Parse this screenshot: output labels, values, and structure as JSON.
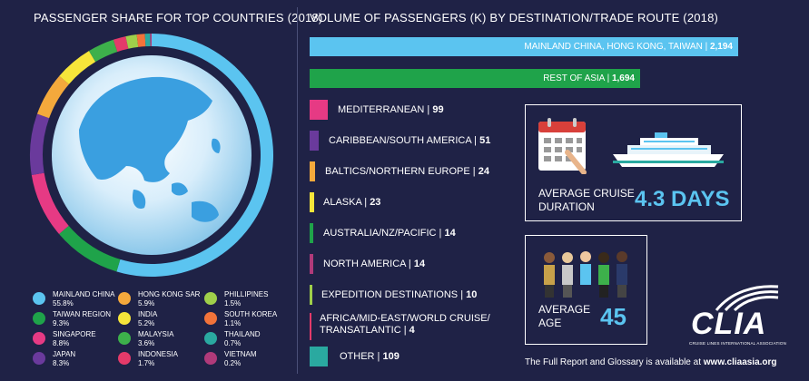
{
  "left_heading": "PASSENGER SHARE FOR TOP COUNTRIES (2018)",
  "right_heading": "VOLUME OF PASSENGERS (K) BY DESTINATION/TRADE ROUTE (2018)",
  "chart_data": [
    {
      "type": "pie",
      "title": "PASSENGER SHARE FOR TOP COUNTRIES (2018)",
      "slices": [
        {
          "name": "MAINLAND CHINA",
          "value": 55.8,
          "value_label": "55.8%",
          "color": "#5bc4f0"
        },
        {
          "name": "TAIWAN REGION",
          "value": 9.3,
          "value_label": "9.3%",
          "color": "#1fa34a"
        },
        {
          "name": "SINGAPORE",
          "value": 8.8,
          "value_label": "8.8%",
          "color": "#e63a84"
        },
        {
          "name": "JAPAN",
          "value": 8.3,
          "value_label": "8.3%",
          "color": "#6a3a9c"
        },
        {
          "name": "HONG KONG SAR",
          "value": 5.9,
          "value_label": "5.9%",
          "color": "#f4a93c"
        },
        {
          "name": "INDIA",
          "value": 5.2,
          "value_label": "5.2%",
          "color": "#f6e53a"
        },
        {
          "name": "MALAYSIA",
          "value": 3.6,
          "value_label": "3.6%",
          "color": "#3db04b"
        },
        {
          "name": "INDONESIA",
          "value": 1.7,
          "value_label": "1.7%",
          "color": "#e43a6a"
        },
        {
          "name": "PHILLIPINES",
          "value": 1.5,
          "value_label": "1.5%",
          "color": "#9fcf4a"
        },
        {
          "name": "SOUTH KOREA",
          "value": 1.1,
          "value_label": "1.1%",
          "color": "#f2733a"
        },
        {
          "name": "THAILAND",
          "value": 0.7,
          "value_label": "0.7%",
          "color": "#2aa9a0"
        },
        {
          "name": "VIETNAM",
          "value": 0.2,
          "value_label": "0.2%",
          "color": "#b03a7a"
        }
      ]
    },
    {
      "type": "bar",
      "title": "VOLUME OF PASSENGERS (K) BY DESTINATION/TRADE ROUTE (2018)",
      "categories": [
        "MAINLAND CHINA, HONG KONG, TAIWAN",
        "REST OF ASIA",
        "MEDITERRANEAN",
        "CARIBBEAN/SOUTH AMERICA",
        "BALTICS/NORTHERN EUROPE",
        "ALASKA",
        "AUSTRALIA/NZ/PACIFIC",
        "NORTH AMERICA",
        "EXPEDITION DESTINATIONS",
        "AFRICA/MID-EAST/WORLD CRUISE/ TRANSATLANTIC",
        "OTHER"
      ],
      "values": [
        2194,
        1694,
        99,
        51,
        24,
        23,
        14,
        14,
        10,
        4,
        109
      ],
      "value_labels": [
        "2,194",
        "1,694",
        "99",
        "51",
        "24",
        "23",
        "14",
        "14",
        "10",
        "4",
        "109"
      ],
      "colors": [
        "#5bc4f0",
        "#1fa34a",
        "#e63a84",
        "#6a3a9c",
        "#f4a93c",
        "#f6e53a",
        "#1fa34a",
        "#b03a7a",
        "#9fcf4a",
        "#e43a6a",
        "#2aa9a0"
      ]
    }
  ],
  "cruise_box": {
    "label_line1": "AVERAGE CRUISE",
    "label_line2": "DURATION",
    "value": "4.3 DAYS"
  },
  "age_box": {
    "label_line1": "AVERAGE",
    "label_line2": "AGE",
    "value": "45"
  },
  "logo": {
    "text": "CLIA",
    "subtext": "CRUISE LINES INTERNATIONAL ASSOCIATION"
  },
  "footer": {
    "text": "The Full Report and Glossary is available at",
    "link": "www.cliaasia.org"
  }
}
